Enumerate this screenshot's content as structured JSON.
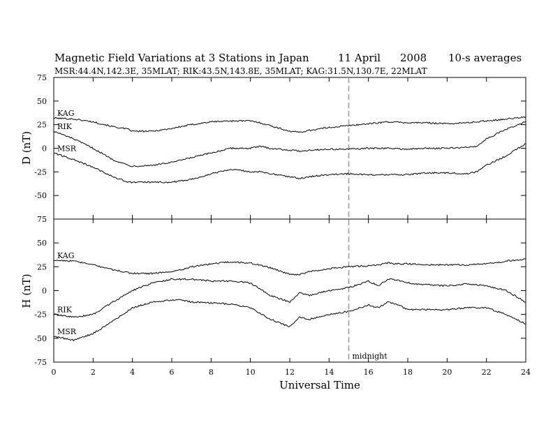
{
  "header": {
    "title": "Magnetic Field Variations at 3 Stations in Japan",
    "date": "11 April",
    "year": "2008",
    "averaging": "10-s averages",
    "stations_line": "MSR:44.4N,142.3E, 35MLAT;  RIK:43.5N,143.8E, 35MLAT;  KAG:31.5N,130.7E, 22MLAT"
  },
  "chart_data": [
    {
      "type": "line",
      "panel": "D",
      "ylabel": "D (nT)",
      "xlabel": "",
      "xlim": [
        0,
        24
      ],
      "ylim": [
        -75,
        75
      ],
      "yticks": [
        -75,
        -50,
        -25,
        0,
        25,
        50,
        75
      ],
      "xticks": [
        0,
        2,
        4,
        6,
        8,
        10,
        12,
        14,
        16,
        18,
        20,
        22,
        24
      ],
      "x": [
        0,
        1,
        2,
        3,
        3.8,
        4,
        5,
        6,
        7,
        8,
        9,
        10,
        10.5,
        11,
        12,
        12.5,
        13,
        14,
        15,
        16,
        17,
        18,
        19,
        20,
        21,
        21.5,
        22,
        23,
        24
      ],
      "series": [
        {
          "name": "KAG",
          "values": [
            32,
            31,
            28,
            23,
            20,
            18,
            18,
            21,
            25,
            28,
            29,
            29,
            27,
            24,
            18,
            17,
            19,
            22,
            24,
            26,
            28,
            27,
            27,
            26,
            27,
            28,
            29,
            31,
            33
          ]
        },
        {
          "name": "RIK",
          "values": [
            18,
            10,
            0,
            -12,
            -18,
            -19,
            -18,
            -15,
            -10,
            -5,
            0,
            0,
            2,
            0,
            -2,
            -3,
            -2,
            -1,
            -1,
            0,
            0,
            -1,
            0,
            0,
            1,
            2,
            10,
            20,
            28
          ]
        },
        {
          "name": "MSR",
          "values": [
            -5,
            -12,
            -20,
            -30,
            -36,
            -36,
            -36,
            -36,
            -33,
            -27,
            -22,
            -25,
            -25,
            -27,
            -30,
            -32,
            -30,
            -28,
            -27,
            -28,
            -28,
            -28,
            -26,
            -26,
            -27,
            -25,
            -18,
            -8,
            5
          ]
        }
      ]
    },
    {
      "type": "line",
      "panel": "H",
      "ylabel": "H (nT)",
      "xlabel": "Universal Time",
      "xlim": [
        0,
        24
      ],
      "ylim": [
        -75,
        75
      ],
      "yticks": [
        -75,
        -50,
        -25,
        0,
        25,
        50,
        75
      ],
      "xticks": [
        0,
        2,
        4,
        6,
        8,
        10,
        12,
        14,
        16,
        18,
        20,
        22,
        24
      ],
      "x": [
        0,
        1,
        2,
        3,
        4,
        5,
        6,
        6.5,
        7,
        8,
        9,
        10,
        11,
        12,
        12.5,
        13,
        14,
        15,
        16,
        16.5,
        17,
        17.5,
        18,
        19,
        20,
        21,
        22,
        23,
        24
      ],
      "series": [
        {
          "name": "KAG",
          "values": [
            32,
            31,
            27,
            22,
            18,
            18,
            20,
            22,
            25,
            28,
            30,
            29,
            24,
            17,
            17,
            20,
            23,
            25,
            26,
            27,
            29,
            28,
            28,
            27,
            27,
            27,
            28,
            31,
            33
          ]
        },
        {
          "name": "RIK",
          "values": [
            -25,
            -28,
            -25,
            -12,
            0,
            8,
            12,
            12,
            12,
            10,
            10,
            8,
            -5,
            -12,
            -2,
            -5,
            0,
            3,
            10,
            5,
            12,
            11,
            8,
            6,
            5,
            7,
            5,
            0,
            -12
          ]
        },
        {
          "name": "MSR",
          "values": [
            -48,
            -52,
            -45,
            -32,
            -18,
            -12,
            -10,
            -10,
            -12,
            -13,
            -14,
            -18,
            -30,
            -38,
            -28,
            -30,
            -25,
            -22,
            -15,
            -18,
            -12,
            -15,
            -20,
            -20,
            -20,
            -18,
            -18,
            -25,
            -35
          ]
        }
      ],
      "annotations": [
        {
          "x": 15,
          "label": "midnight"
        }
      ]
    }
  ]
}
